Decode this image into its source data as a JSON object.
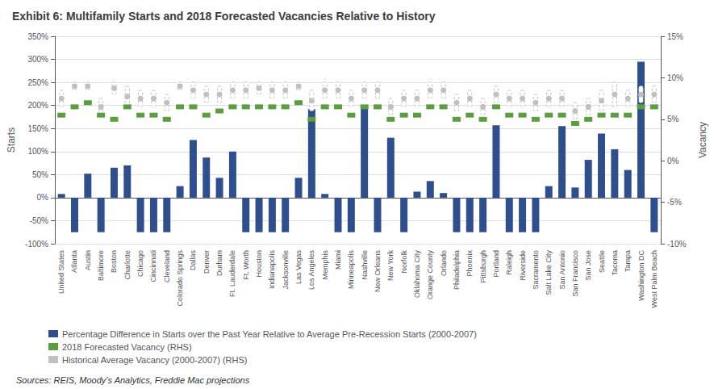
{
  "chart_data": {
    "type": "bar",
    "title": "Exhibit 6: Multifamily Starts and 2018 Forecasted Vacancies Relative to History",
    "annotations": [
      "Sources: REIS, Moody’s Analytics, Freddie Mac projections"
    ],
    "categories": [
      "United States",
      "Atlanta",
      "Austin",
      "Baltimore",
      "Boston",
      "Charlotte",
      "Chicago",
      "Cincinnati",
      "Cleveland",
      "Colorado Springs",
      "Dallas",
      "Denver",
      "Durham",
      "Ft. Lauderdale",
      "Ft. Worth",
      "Houston",
      "Indianapolis",
      "Jacksonville",
      "Las Vegas",
      "Los Angeles",
      "Memphis",
      "Miami",
      "Minneapolis",
      "Nashville",
      "New Orleans",
      "New York",
      "Norfolk",
      "Oklahoma City",
      "Orange County",
      "Orlando",
      "Philadelphia",
      "Phoenix",
      "Pittsburgh",
      "Portland",
      "Raleigh",
      "Riverside",
      "Sacramento",
      "Salt Lake City",
      "San Antonio",
      "San Francisco",
      "San Jose",
      "Seattle",
      "Tacoma",
      "Tampa",
      "Washington DC",
      "West Palm Beach"
    ],
    "series": [
      {
        "name": "Percentage Difference in Starts over the Past Year Relative to Average Pre-Recession Starts (2000-2007)",
        "type": "bar",
        "color": "#2e4e8e",
        "values": [
          0.08,
          -0.75,
          0.52,
          -0.75,
          0.65,
          0.7,
          -0.75,
          -0.75,
          -0.75,
          0.25,
          1.25,
          0.87,
          0.43,
          1.0,
          -0.75,
          -0.75,
          -0.75,
          -0.75,
          0.43,
          1.92,
          0.08,
          -0.75,
          -0.75,
          1.95,
          -0.75,
          1.3,
          -0.75,
          0.13,
          0.36,
          0.1,
          -0.75,
          -0.75,
          -0.75,
          1.57,
          -0.75,
          -0.75,
          -0.75,
          0.25,
          1.55,
          0.22,
          0.82,
          1.39,
          1.05,
          0.6,
          2.95,
          -0.75
        ]
      },
      {
        "name": "2018 Forecasted Vacancy (RHS)",
        "type": "scatter",
        "marker": "square",
        "axis": "y2",
        "color": "#5a9e3f",
        "values": [
          0.055,
          0.065,
          0.07,
          0.055,
          0.05,
          0.065,
          0.055,
          0.055,
          0.05,
          0.065,
          0.065,
          0.055,
          0.06,
          0.065,
          0.065,
          0.065,
          0.065,
          0.065,
          0.07,
          0.05,
          0.065,
          0.065,
          0.055,
          0.065,
          0.065,
          0.05,
          0.055,
          0.055,
          0.065,
          0.065,
          0.05,
          0.055,
          0.05,
          0.065,
          0.055,
          0.055,
          0.05,
          0.055,
          0.055,
          0.045,
          0.05,
          0.055,
          0.055,
          0.055,
          0.065,
          0.065
        ]
      },
      {
        "name": "Historical Average Vacancy (2000-2007) (RHS)",
        "type": "scatter",
        "marker": "circle",
        "axis": "y2",
        "color": "#c0c0c0",
        "values": [
          0.075,
          0.09,
          0.09,
          0.065,
          0.0875,
          0.0775,
          0.075,
          0.075,
          0.07,
          0.09,
          0.085,
          0.08,
          0.08,
          0.085,
          0.085,
          0.0875,
          0.085,
          0.085,
          0.09,
          0.0725,
          0.085,
          0.085,
          0.075,
          0.085,
          0.085,
          0.065,
          0.075,
          0.075,
          0.085,
          0.085,
          0.07,
          0.075,
          0.065,
          0.08,
          0.075,
          0.075,
          0.07,
          0.075,
          0.075,
          0.06,
          0.065,
          0.0725,
          0.08,
          0.075,
          0.08,
          0.08
        ],
        "low": [
          0.065,
          0.085,
          0.085,
          0.055,
          0.08,
          0.065,
          0.065,
          0.065,
          0.06,
          0.085,
          0.075,
          0.07,
          0.07,
          0.075,
          0.075,
          0.08,
          0.075,
          0.075,
          0.085,
          0.06,
          0.075,
          0.075,
          0.065,
          0.075,
          0.075,
          0.055,
          0.065,
          0.065,
          0.075,
          0.075,
          0.06,
          0.065,
          0.055,
          0.07,
          0.065,
          0.065,
          0.06,
          0.065,
          0.065,
          0.05,
          0.055,
          0.06,
          0.065,
          0.065,
          0.07,
          0.07
        ],
        "high": [
          0.085,
          0.095,
          0.095,
          0.075,
          0.095,
          0.09,
          0.085,
          0.085,
          0.08,
          0.095,
          0.095,
          0.09,
          0.09,
          0.095,
          0.095,
          0.095,
          0.095,
          0.095,
          0.095,
          0.085,
          0.095,
          0.095,
          0.085,
          0.095,
          0.095,
          0.075,
          0.085,
          0.085,
          0.095,
          0.095,
          0.08,
          0.085,
          0.075,
          0.09,
          0.085,
          0.085,
          0.08,
          0.085,
          0.085,
          0.07,
          0.075,
          0.085,
          0.095,
          0.085,
          0.09,
          0.09
        ]
      }
    ],
    "ylabel": "Starts",
    "y2label": "Vacancy",
    "ylim": [
      -1.0,
      3.5
    ],
    "yticks": [
      {
        "value": -1.0,
        "label": "-100%"
      },
      {
        "value": -0.5,
        "label": "-50%"
      },
      {
        "value": 0.0,
        "label": "0%"
      },
      {
        "value": 0.5,
        "label": "50%"
      },
      {
        "value": 1.0,
        "label": "100%"
      },
      {
        "value": 1.5,
        "label": "150%"
      },
      {
        "value": 2.0,
        "label": "200%"
      },
      {
        "value": 2.5,
        "label": "250%"
      },
      {
        "value": 3.0,
        "label": "300%"
      },
      {
        "value": 3.5,
        "label": "350%"
      }
    ],
    "y2lim": [
      -0.1,
      0.15
    ],
    "y2ticks": [
      {
        "value": -0.1,
        "label": "-10%"
      },
      {
        "value": -0.05,
        "label": "-5%"
      },
      {
        "value": 0.0,
        "label": "0%"
      },
      {
        "value": 0.05,
        "label": "5%"
      },
      {
        "value": 0.1,
        "label": "10%"
      },
      {
        "value": 0.15,
        "label": "15%"
      }
    ],
    "grid": true,
    "legend": "bottom"
  }
}
